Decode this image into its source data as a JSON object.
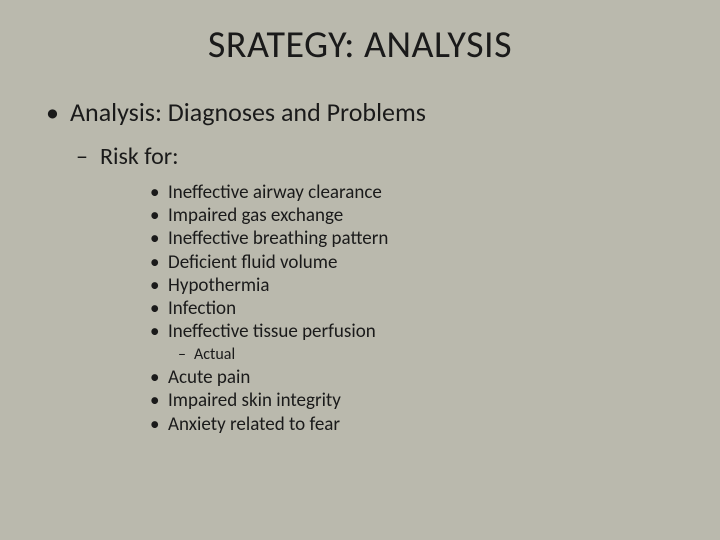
{
  "colors": {
    "background": "#bab9ad",
    "text": "#1a1a1a"
  },
  "typography": {
    "title_fontsize": 38,
    "level1_fontsize": 26,
    "level2_fontsize": 24,
    "level3_fontsize": 19,
    "level4_fontsize": 16,
    "font_family": "Calibri"
  },
  "title": "SRATEGY: ANALYSIS",
  "level1": "Analysis: Diagnoses and Problems",
  "level2": "Risk for:",
  "risk_items": [
    "Ineffective airway clearance",
    "Impaired gas exchange",
    "Ineffective breathing pattern",
    "Deficient fluid volume",
    "Hypothermia",
    "Infection",
    "Ineffective tissue perfusion"
  ],
  "level4": "Actual",
  "actual_items": [
    "Acute pain",
    "Impaired skin integrity",
    "Anxiety related to fear"
  ]
}
